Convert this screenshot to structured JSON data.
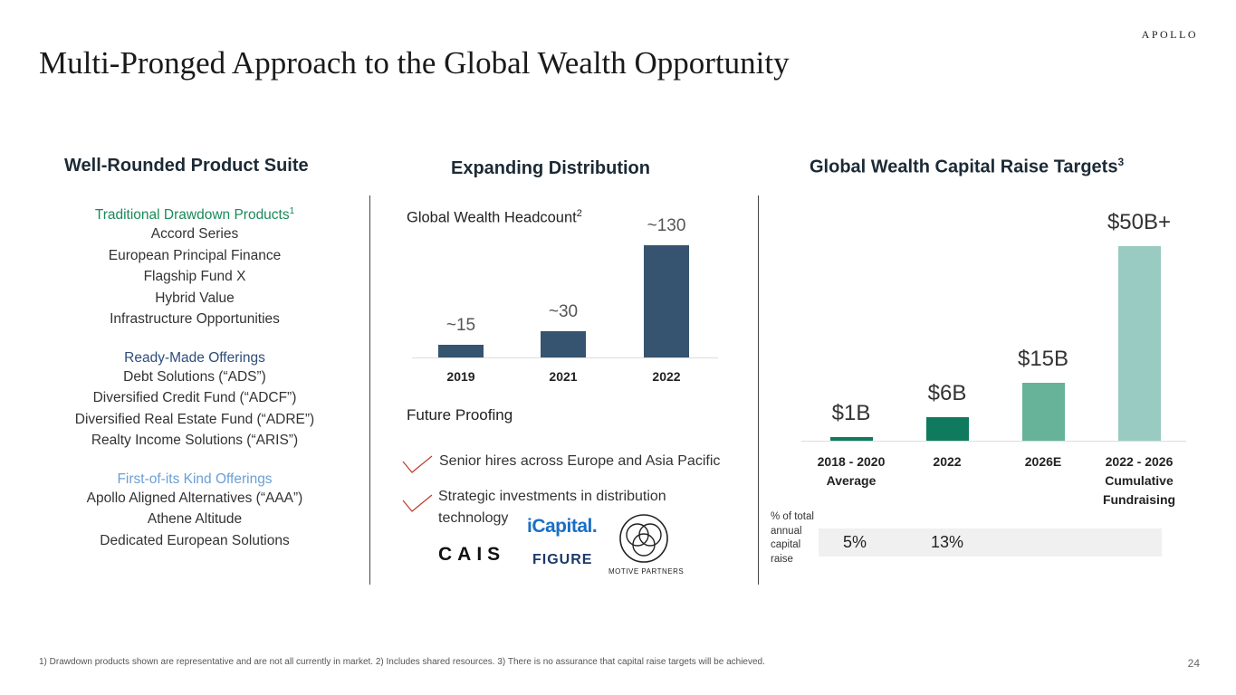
{
  "brand": "APOLLO",
  "title": "Multi-Pronged Approach to the Global Wealth Opportunity",
  "product_suite": {
    "heading": "Well-Rounded Product Suite",
    "groups": [
      {
        "heading": "Traditional Drawdown Products",
        "sup": "1",
        "color": "#1a8a5a",
        "items": [
          "Accord Series",
          "European Principal Finance",
          "Flagship Fund X",
          "Hybrid Value",
          "Infrastructure Opportunities"
        ]
      },
      {
        "heading": "Ready-Made Offerings",
        "sup": "",
        "color": "#2e4d7a",
        "items": [
          "Debt Solutions (“ADS”)",
          "Diversified Credit Fund (“ADCF”)",
          "Diversified Real Estate Fund (“ADRE”)",
          "Realty Income Solutions (“ARIS”)"
        ]
      },
      {
        "heading": "First-of-its Kind Offerings",
        "sup": "",
        "color": "#6a9fd4",
        "items": [
          "Apollo Aligned Alternatives (“AAA”)",
          "Athene Altitude",
          "Dedicated European Solutions"
        ]
      }
    ]
  },
  "distribution": {
    "heading": "Expanding Distribution",
    "headcount_label": "Global Wealth Headcount",
    "headcount_sup": "2",
    "future_label": "Future Proofing",
    "future_items": [
      "Senior hires across Europe and Asia Pacific",
      "Strategic investments in distribution technology"
    ],
    "logos": {
      "icapital": "iCapital.",
      "cais": "CAIS",
      "figure": "FIGURE",
      "motive": "MOTIVE PARTNERS"
    },
    "check_color": "#c0392b"
  },
  "targets": {
    "heading": "Global Wealth Capital Raise Targets",
    "heading_sup": "3",
    "pct_label": "% of total annual capital raise",
    "pct_values": [
      "5%",
      "13%"
    ]
  },
  "chart_data": [
    {
      "type": "bar",
      "title": "Global Wealth Headcount",
      "categories": [
        "2019",
        "2021",
        "2022"
      ],
      "values": [
        15,
        30,
        130
      ],
      "labels": [
        "~15",
        "~30",
        "~130"
      ],
      "ylim": [
        0,
        130
      ],
      "color": "#36546f",
      "grid": false
    },
    {
      "type": "bar",
      "title": "Global Wealth Capital Raise Targets",
      "categories": [
        "2018 - 2020 Average",
        "2022",
        "2026E",
        "2022 - 2026 Cumulative Fundraising"
      ],
      "values": [
        1,
        6,
        15,
        50
      ],
      "labels": [
        "$1B",
        "$6B",
        "$15B",
        "$50B+"
      ],
      "unit": "$B",
      "ylim": [
        0,
        50
      ],
      "colors": [
        "#0f7a5e",
        "#0f7a5e",
        "#66b39a",
        "#99cbc2"
      ],
      "grid": false
    }
  ],
  "footnote": "1) Drawdown products shown are representative and are not all currently in market. 2) Includes shared resources. 3) There is no assurance that capital raise targets will be achieved.",
  "page_number": "24"
}
